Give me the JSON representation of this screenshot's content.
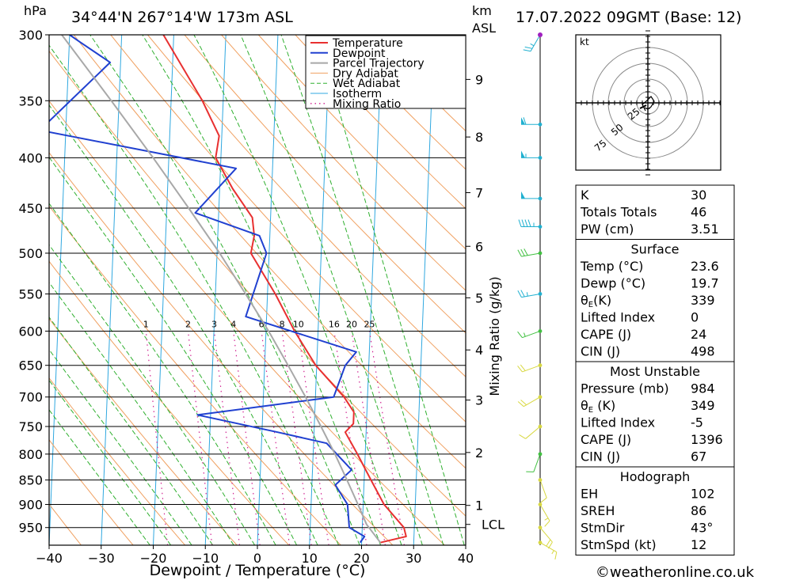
{
  "header": {
    "pressure_unit": "hPa",
    "location": "34°44'N  267°14'W  173m  ASL",
    "height_unit_top": "km",
    "height_unit_bottom": "ASL",
    "datetime": "17.07.2022  09GMT  (Base: 12)"
  },
  "footer": {
    "credit": "©weatheronline.co.uk"
  },
  "colors": {
    "temperature": "#e83030",
    "dewpoint": "#2040d0",
    "parcel": "#a8a8a8",
    "dry_adiabat": "#f0a060",
    "wet_adiabat": "#30b030",
    "isotherm": "#30a8e0",
    "mixing_ratio": "#d02090",
    "wind_cyan": "#20b0d0",
    "wind_green": "#40c040",
    "wind_yellow": "#d8d840"
  },
  "chart_data": {
    "type": "line",
    "subtype": "skew-T log-P",
    "xlabel": "Dewpoint / Temperature (°C)",
    "ylabel": "hPa",
    "xlim": [
      -40,
      40
    ],
    "ylim": [
      990,
      300
    ],
    "x_ticks": [
      "−40",
      "−30",
      "−20",
      "−10",
      "0",
      "10",
      "20",
      "30",
      "40"
    ],
    "y_ticks": [
      "300",
      "350",
      "400",
      "450",
      "500",
      "550",
      "600",
      "650",
      "700",
      "750",
      "800",
      "850",
      "900",
      "950"
    ],
    "right_axis_label": "Mixing Ratio (g/kg)",
    "km_ticks": [
      {
        "label": "9",
        "p": 333
      },
      {
        "label": "8",
        "p": 381
      },
      {
        "label": "7",
        "p": 434
      },
      {
        "label": "6",
        "p": 492
      },
      {
        "label": "5",
        "p": 555
      },
      {
        "label": "4",
        "p": 627
      },
      {
        "label": "3",
        "p": 705
      },
      {
        "label": "2",
        "p": 797
      },
      {
        "label": "1",
        "p": 902
      },
      {
        "label": "LCL",
        "p": 943
      }
    ],
    "mixing_ratio_labels": [
      {
        "label": "1",
        "w": 1
      },
      {
        "label": "2",
        "w": 2
      },
      {
        "label": "3",
        "w": 3
      },
      {
        "label": "4",
        "w": 4
      },
      {
        "label": "6",
        "w": 6
      },
      {
        "label": "8",
        "w": 8
      },
      {
        "label": "10",
        "w": 10
      },
      {
        "label": "16",
        "w": 16
      },
      {
        "label": "20",
        "w": 20
      },
      {
        "label": "25",
        "w": 25
      }
    ],
    "legend": [
      "Temperature",
      "Dewpoint",
      "Parcel Trajectory",
      "Dry Adiabat",
      "Wet Adiabat",
      "Isotherm",
      "Mixing Ratio"
    ],
    "series": [
      {
        "name": "Temperature",
        "points": [
          [
            984,
            23.6
          ],
          [
            970,
            28.5
          ],
          [
            950,
            28.0
          ],
          [
            900,
            24.0
          ],
          [
            850,
            21.3
          ],
          [
            800,
            18.5
          ],
          [
            760,
            16.0
          ],
          [
            745,
            17.5
          ],
          [
            725,
            17.5
          ],
          [
            700,
            15.5
          ],
          [
            650,
            9.8
          ],
          [
            600,
            5.5
          ],
          [
            550,
            1.5
          ],
          [
            500,
            -3.5
          ],
          [
            480,
            -3.0
          ],
          [
            460,
            -3.5
          ],
          [
            430,
            -7.5
          ],
          [
            400,
            -11.0
          ],
          [
            380,
            -10.5
          ],
          [
            350,
            -14.0
          ],
          [
            300,
            -22.0
          ]
        ]
      },
      {
        "name": "Dewpoint",
        "points": [
          [
            984,
            19.7
          ],
          [
            970,
            20.5
          ],
          [
            950,
            17.5
          ],
          [
            900,
            17.0
          ],
          [
            860,
            14.5
          ],
          [
            830,
            17.5
          ],
          [
            780,
            12.5
          ],
          [
            760,
            3.0
          ],
          [
            730,
            -12.5
          ],
          [
            700,
            13.5
          ],
          [
            650,
            15.5
          ],
          [
            630,
            17.5
          ],
          [
            580,
            -4.0
          ],
          [
            500,
            -0.5
          ],
          [
            480,
            -2.0
          ],
          [
            455,
            -14.5
          ],
          [
            410,
            -7.0
          ],
          [
            375,
            -45.0
          ],
          [
            320,
            -32.0
          ],
          [
            305,
            -38.0
          ],
          [
            300,
            -40.0
          ]
        ]
      },
      {
        "name": "Parcel Trajectory",
        "points": [
          [
            984,
            23.6
          ],
          [
            943,
            20.8
          ],
          [
            900,
            19.0
          ],
          [
            850,
            16.7
          ],
          [
            800,
            14.2
          ],
          [
            750,
            11.3
          ],
          [
            700,
            8.1
          ],
          [
            650,
            4.5
          ],
          [
            600,
            0.5
          ],
          [
            550,
            -4.2
          ],
          [
            500,
            -9.5
          ],
          [
            450,
            -15.8
          ],
          [
            400,
            -23.0
          ],
          [
            350,
            -31.5
          ],
          [
            300,
            -41.5
          ]
        ]
      }
    ]
  },
  "hodograph": {
    "unit": "kt",
    "ring_labels": [
      "25",
      "50",
      "75"
    ]
  },
  "indices": {
    "top": [
      {
        "label": "K",
        "value": "30"
      },
      {
        "label": "Totals Totals",
        "value": "46"
      },
      {
        "label": "PW (cm)",
        "value": "3.51"
      }
    ],
    "surface": {
      "title": "Surface",
      "rows": [
        {
          "label": "Temp (°C)",
          "value": "23.6"
        },
        {
          "label": "Dewp (°C)",
          "value": "19.7"
        },
        {
          "label": "θ",
          "sub": "E",
          "suffix": "(K)",
          "value": "339"
        },
        {
          "label": "Lifted Index",
          "value": "0"
        },
        {
          "label": "CAPE (J)",
          "value": "24"
        },
        {
          "label": "CIN (J)",
          "value": "498"
        }
      ]
    },
    "most_unstable": {
      "title": "Most Unstable",
      "rows": [
        {
          "label": "Pressure (mb)",
          "value": "984"
        },
        {
          "label": "θ",
          "sub": "E",
          "suffix": " (K)",
          "value": "349"
        },
        {
          "label": "Lifted Index",
          "value": "-5"
        },
        {
          "label": "CAPE (J)",
          "value": "1396"
        },
        {
          "label": "CIN (J)",
          "value": "67"
        }
      ]
    },
    "hodograph_block": {
      "title": "Hodograph",
      "rows": [
        {
          "label": "EH",
          "value": "102"
        },
        {
          "label": "SREH",
          "value": "86"
        },
        {
          "label": "StmDir",
          "value": "43°"
        },
        {
          "label": "StmSpd (kt)",
          "value": "12"
        }
      ]
    }
  },
  "wind_barbs": [
    {
      "p": 300,
      "dir": 210,
      "spd": 25,
      "c": "wind_cyan"
    },
    {
      "p": 370,
      "dir": 270,
      "spd": 60,
      "c": "wind_cyan"
    },
    {
      "p": 400,
      "dir": 270,
      "spd": 55,
      "c": "wind_cyan"
    },
    {
      "p": 440,
      "dir": 270,
      "spd": 50,
      "c": "wind_cyan"
    },
    {
      "p": 470,
      "dir": 270,
      "spd": 45,
      "c": "wind_cyan"
    },
    {
      "p": 500,
      "dir": 260,
      "spd": 30,
      "c": "wind_green"
    },
    {
      "p": 550,
      "dir": 260,
      "spd": 25,
      "c": "wind_cyan"
    },
    {
      "p": 600,
      "dir": 250,
      "spd": 15,
      "c": "wind_green"
    },
    {
      "p": 650,
      "dir": 250,
      "spd": 20,
      "c": "wind_yellow"
    },
    {
      "p": 700,
      "dir": 240,
      "spd": 20,
      "c": "wind_yellow"
    },
    {
      "p": 750,
      "dir": 230,
      "spd": 10,
      "c": "wind_yellow"
    },
    {
      "p": 800,
      "dir": 200,
      "spd": 10,
      "c": "wind_green"
    },
    {
      "p": 850,
      "dir": 160,
      "spd": 10,
      "c": "wind_yellow"
    },
    {
      "p": 900,
      "dir": 150,
      "spd": 15,
      "c": "wind_yellow"
    },
    {
      "p": 950,
      "dir": 140,
      "spd": 20,
      "c": "wind_yellow"
    },
    {
      "p": 984,
      "dir": 120,
      "spd": 15,
      "c": "wind_yellow"
    }
  ]
}
